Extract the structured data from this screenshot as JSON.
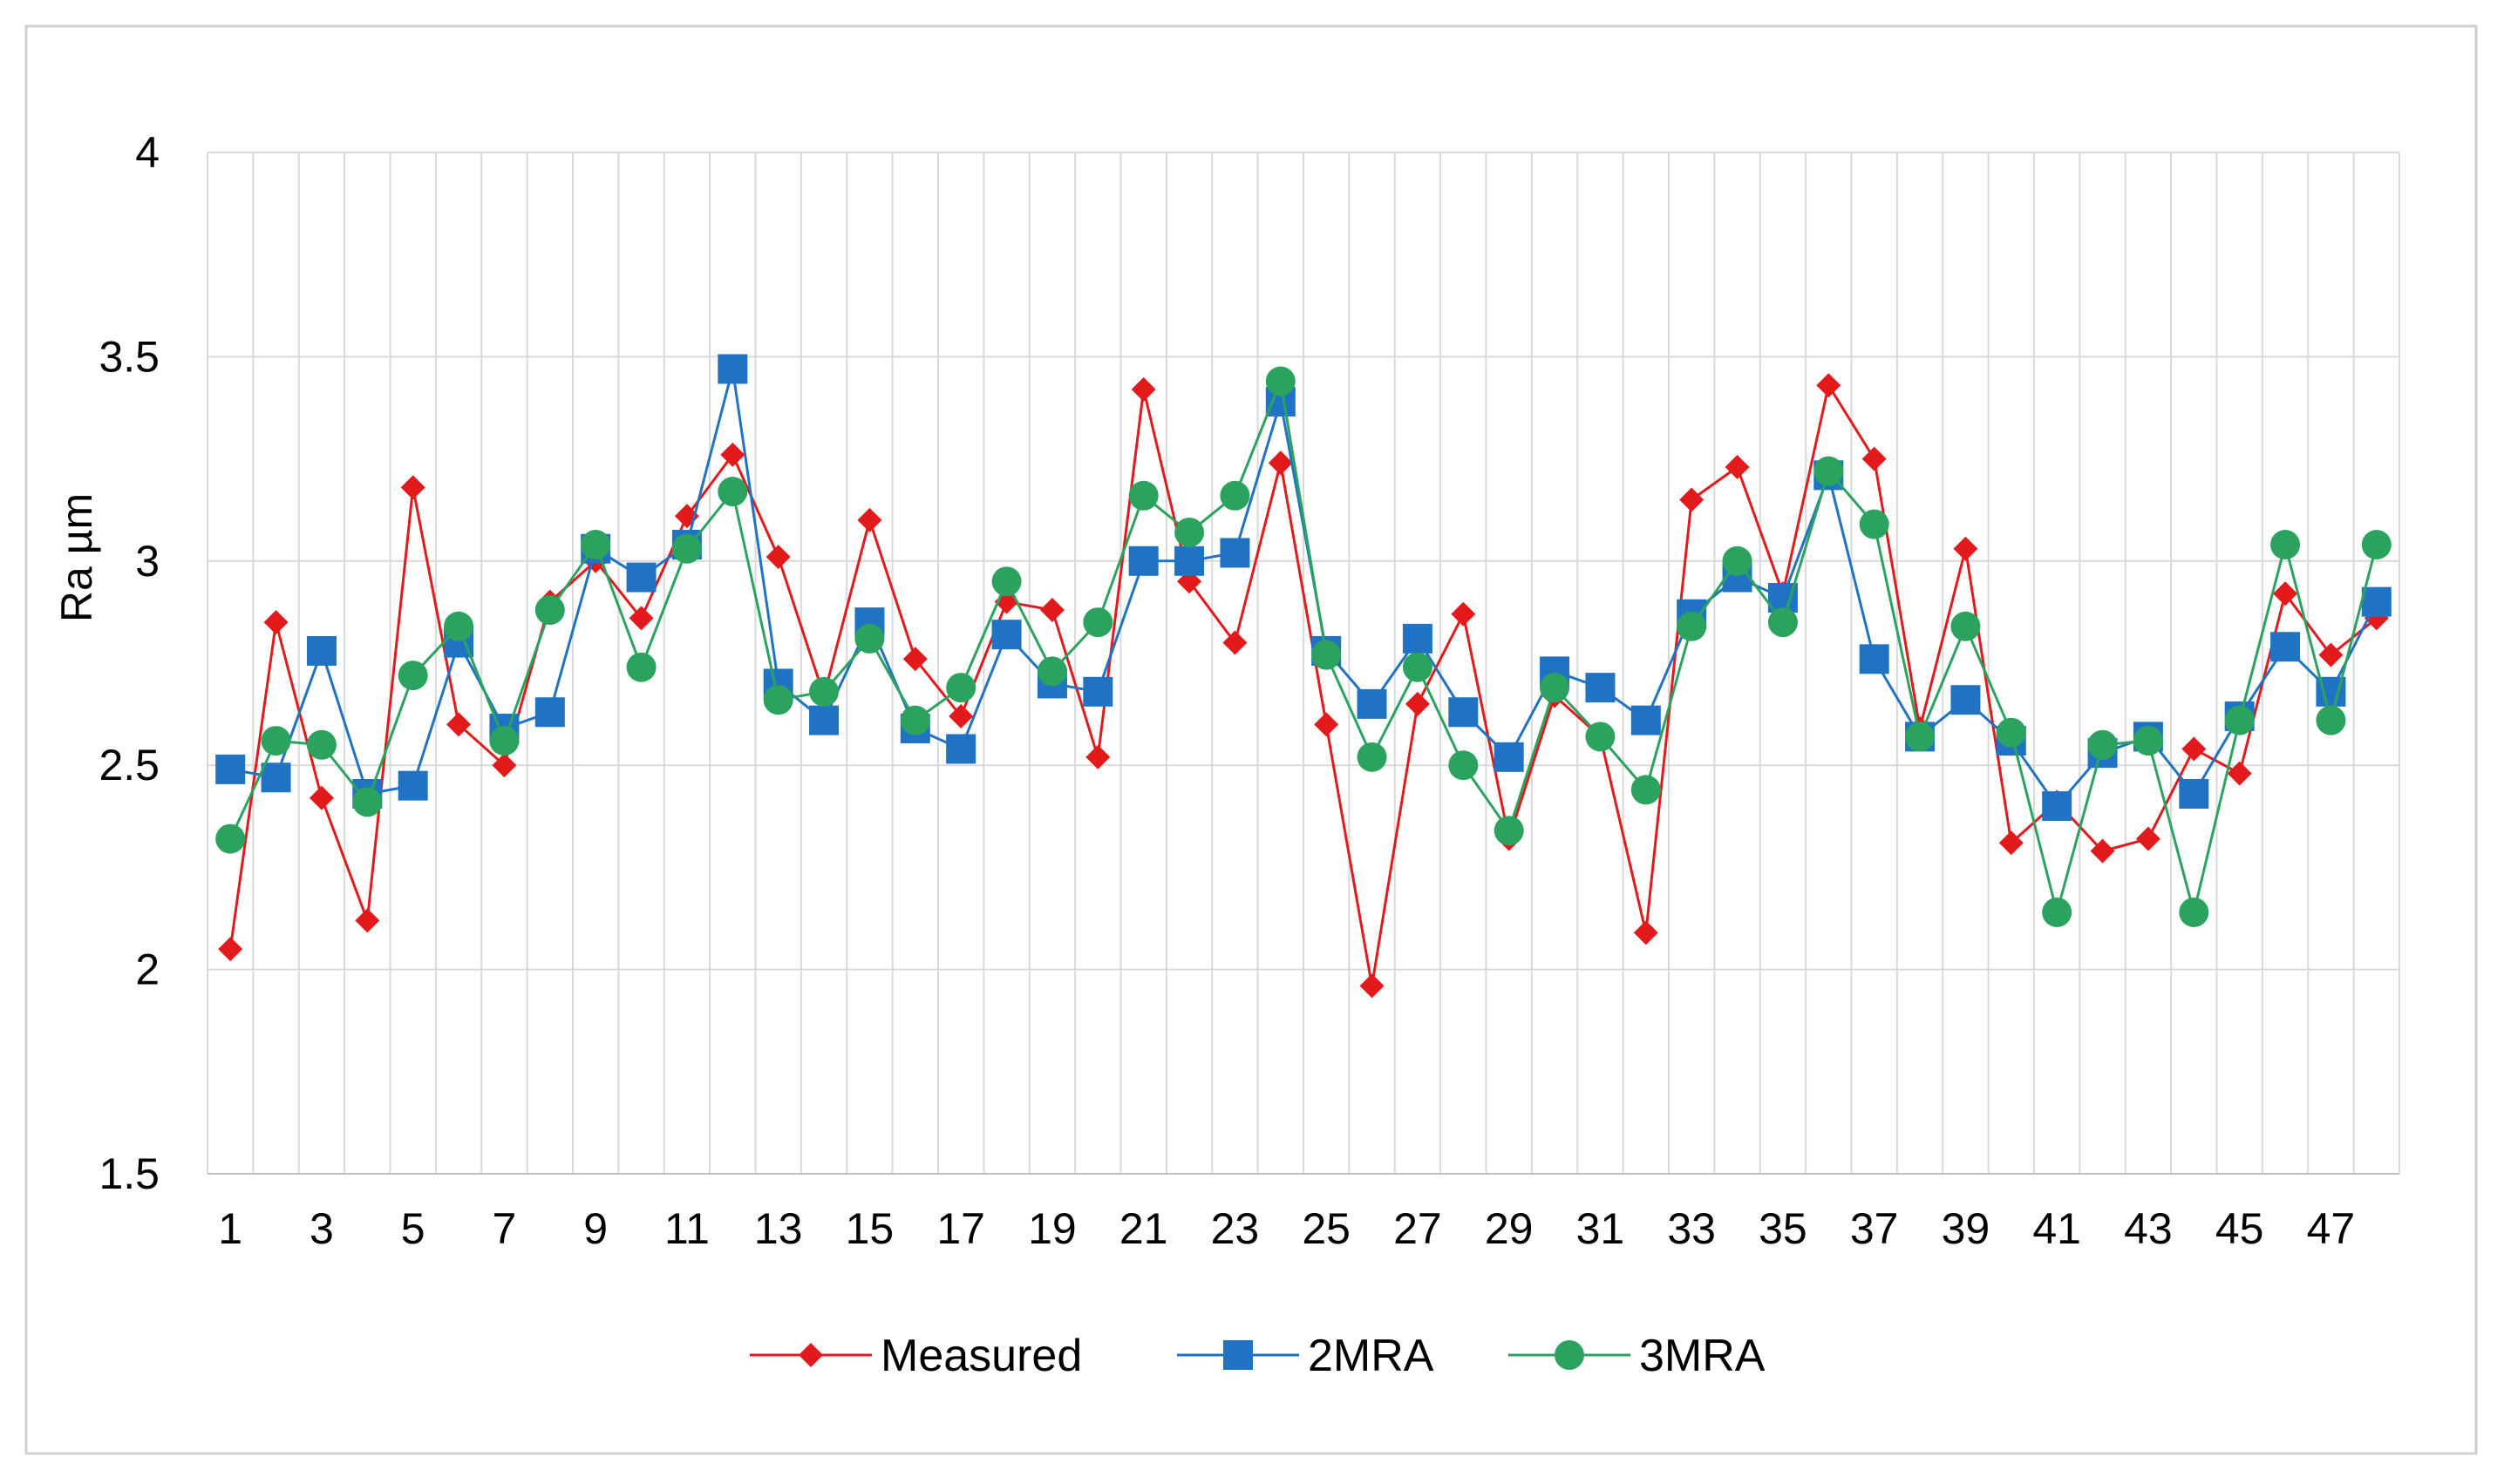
{
  "chart_data": {
    "type": "line",
    "title": "",
    "xlabel": "",
    "ylabel": "Ra µm",
    "ylim": [
      1.5,
      4
    ],
    "yticks": [
      "1.5",
      "2",
      "2.5",
      "3",
      "3.5",
      "4"
    ],
    "grid": true,
    "legend_position": "bottom",
    "categories": [
      1,
      2,
      3,
      4,
      5,
      6,
      7,
      8,
      9,
      10,
      11,
      12,
      13,
      14,
      15,
      16,
      17,
      18,
      19,
      20,
      21,
      22,
      23,
      24,
      25,
      26,
      27,
      28,
      29,
      30,
      31,
      32,
      33,
      34,
      35,
      36,
      37,
      38,
      39,
      40,
      41,
      42,
      43,
      44,
      45,
      46,
      47,
      48
    ],
    "xtick_labels": [
      "1",
      "3",
      "5",
      "7",
      "9",
      "11",
      "13",
      "15",
      "17",
      "19",
      "21",
      "23",
      "25",
      "27",
      "29",
      "31",
      "33",
      "35",
      "37",
      "39",
      "41",
      "43",
      "45",
      "47"
    ],
    "series": [
      {
        "name": "Measured",
        "color": "#e31a1c",
        "marker": "diamond",
        "values": [
          2.05,
          2.85,
          2.42,
          2.12,
          3.18,
          2.6,
          2.5,
          2.9,
          3.0,
          2.86,
          3.11,
          3.26,
          3.01,
          2.67,
          3.1,
          2.76,
          2.62,
          2.9,
          2.88,
          2.52,
          3.42,
          2.95,
          2.8,
          3.24,
          2.6,
          1.96,
          2.65,
          2.87,
          2.32,
          2.67,
          2.57,
          2.09,
          3.15,
          3.23,
          2.92,
          3.43,
          3.25,
          2.59,
          3.03,
          2.31,
          2.41,
          2.29,
          2.32,
          2.54,
          2.48,
          2.92,
          2.77,
          2.86
        ]
      },
      {
        "name": "2MRA",
        "color": "#1f73c2",
        "marker": "square",
        "values": [
          2.49,
          2.47,
          2.78,
          2.43,
          2.45,
          2.8,
          2.59,
          2.63,
          3.03,
          2.96,
          3.04,
          3.47,
          2.7,
          2.61,
          2.85,
          2.59,
          2.54,
          2.82,
          2.7,
          2.68,
          3.0,
          3.0,
          3.02,
          3.39,
          2.78,
          2.65,
          2.81,
          2.63,
          2.52,
          2.73,
          2.69,
          2.61,
          2.87,
          2.96,
          2.91,
          3.21,
          2.76,
          2.57,
          2.66,
          2.56,
          2.4,
          2.53,
          2.57,
          2.43,
          2.62,
          2.79,
          2.68,
          2.9
        ]
      },
      {
        "name": "3MRA",
        "color": "#2ca25f",
        "marker": "circle",
        "values": [
          2.32,
          2.56,
          2.55,
          2.41,
          2.72,
          2.84,
          2.56,
          2.88,
          3.04,
          2.74,
          3.03,
          3.17,
          2.66,
          2.68,
          2.81,
          2.61,
          2.69,
          2.95,
          2.73,
          2.85,
          3.16,
          3.07,
          3.16,
          3.44,
          2.77,
          2.52,
          2.74,
          2.5,
          2.34,
          2.69,
          2.57,
          2.44,
          2.84,
          3.0,
          2.85,
          3.22,
          3.09,
          2.57,
          2.84,
          2.58,
          2.14,
          2.55,
          2.56,
          2.14,
          2.61,
          3.04,
          2.61,
          3.04
        ]
      }
    ]
  }
}
